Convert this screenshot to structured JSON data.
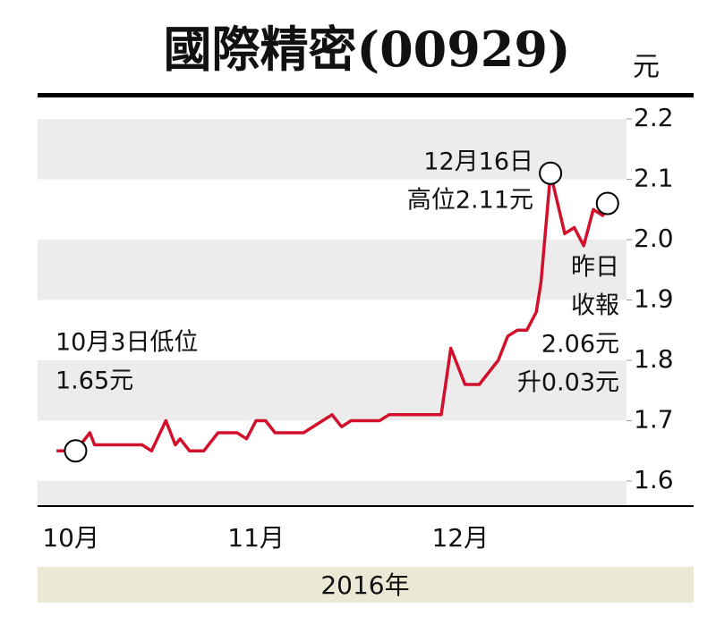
{
  "chart_data": {
    "type": "line",
    "title": "國際精密(00929)",
    "unit": "元",
    "x_label": "2016年",
    "x": [
      0,
      4,
      7,
      8,
      18,
      20,
      23,
      25,
      26,
      28,
      31,
      34,
      38,
      40,
      42,
      44,
      46,
      52,
      58,
      60,
      62,
      68,
      70,
      81,
      83,
      86,
      89,
      93,
      95,
      97,
      99,
      101,
      102,
      104,
      107,
      109,
      111,
      113,
      115,
      116
    ],
    "values": [
      1.65,
      1.65,
      1.68,
      1.66,
      1.66,
      1.65,
      1.7,
      1.66,
      1.67,
      1.65,
      1.65,
      1.68,
      1.68,
      1.67,
      1.7,
      1.7,
      1.68,
      1.68,
      1.71,
      1.69,
      1.7,
      1.7,
      1.71,
      1.71,
      1.82,
      1.76,
      1.76,
      1.8,
      1.84,
      1.85,
      1.85,
      1.88,
      1.93,
      2.11,
      2.01,
      2.02,
      1.99,
      2.05,
      2.04,
      2.06
    ],
    "color": "#d2102b",
    "xlim": [
      -4,
      120
    ],
    "xticks": [
      {
        "value": 3,
        "label": "10月"
      },
      {
        "value": 42,
        "label": "11月"
      },
      {
        "value": 85,
        "label": "12月"
      }
    ],
    "ylim": [
      1.56,
      2.2
    ],
    "yticks": [
      1.6,
      1.7,
      1.8,
      1.9,
      {
        "value": 2,
        "label": "2.0"
      },
      2.1,
      2.2
    ],
    "annotations": [
      {
        "lines": [
          "10月3日低位",
          "1.65元"
        ],
        "point": 1
      },
      {
        "lines": [
          "12月16日",
          "高位2.11元"
        ],
        "point": 33
      },
      {
        "lines": [
          "昨日",
          "收報",
          "2.06元",
          "升0.03元"
        ],
        "point": 39
      }
    ]
  }
}
